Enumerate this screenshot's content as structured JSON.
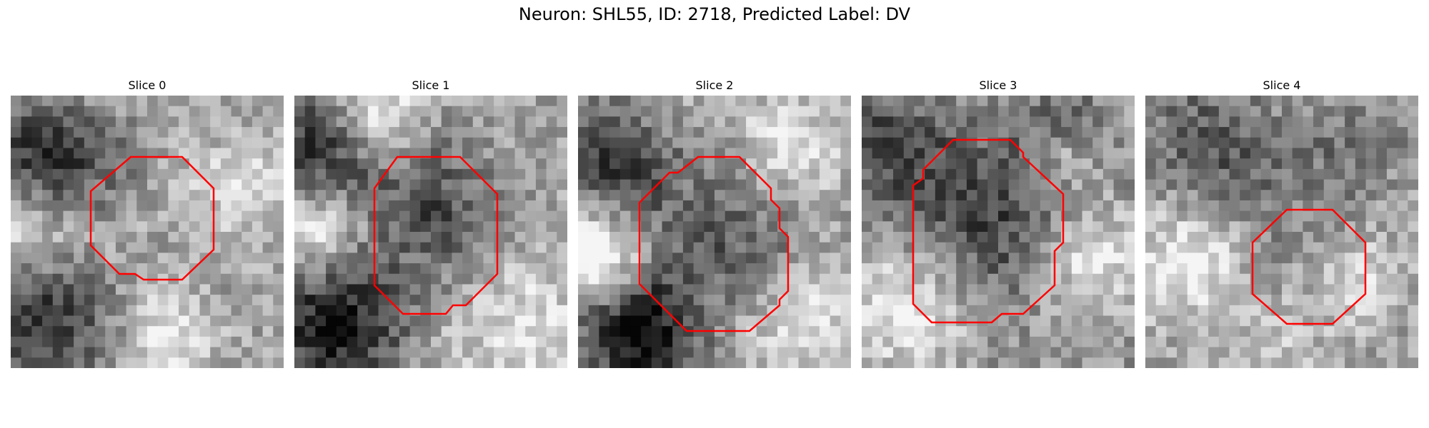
{
  "figure": {
    "title": "Neuron: SHL55, ID: 2718, Predicted Label: DV"
  },
  "panels": [
    {
      "title": "Slice 0"
    },
    {
      "title": "Slice 1"
    },
    {
      "title": "Slice 2"
    },
    {
      "title": "Slice 3"
    },
    {
      "title": "Slice 4"
    }
  ],
  "colors": {
    "contour": "#ff0000",
    "background": "#ffffff"
  }
}
